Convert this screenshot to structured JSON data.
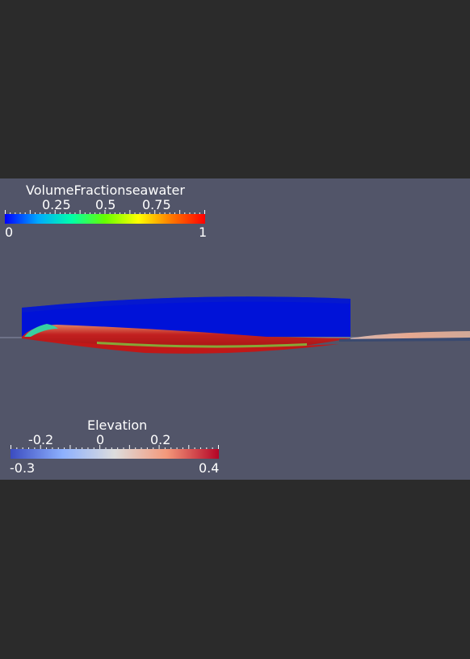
{
  "colorbar_volume": {
    "title": "VolumeFractionseawater",
    "ticks": [
      "0.25",
      "0.5",
      "0.75"
    ],
    "min_label": "0",
    "max_label": "1",
    "colors": [
      "#0000ff",
      "#00aaff",
      "#00ffaa",
      "#66ff00",
      "#ffff00",
      "#ff7700",
      "#ff0000"
    ]
  },
  "colorbar_elevation": {
    "title": "Elevation",
    "ticks": [
      "-0.2",
      "0",
      "0.2"
    ],
    "min_label": "-0.3",
    "max_label": "0.4",
    "colors": [
      "#3b4cc0",
      "#8db0fe",
      "#dddddd",
      "#f4987a",
      "#b40426"
    ]
  },
  "scene": {
    "background": "#525569",
    "hull_color": "#0011dd",
    "waterline_color": "#3a5a80"
  }
}
